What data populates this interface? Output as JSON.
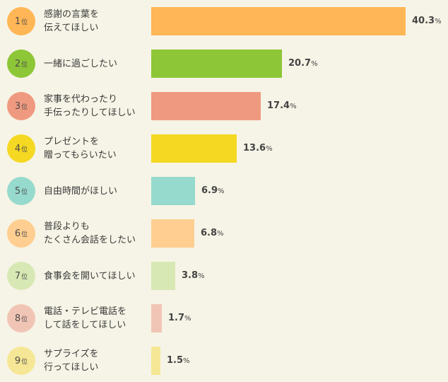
{
  "chart_data": {
    "type": "bar",
    "orientation": "horizontal",
    "unit": "%",
    "items": [
      {
        "rank": "1",
        "rank_unit": "位",
        "label_lines": [
          "感謝の言葉を",
          "伝えてほしい"
        ],
        "value": 40.3,
        "value_text": "40.3",
        "color": "#ffb656",
        "badge_color": "#ffb656"
      },
      {
        "rank": "2",
        "rank_unit": "位",
        "label_lines": [
          "一緒に過ごしたい"
        ],
        "value": 20.7,
        "value_text": "20.7",
        "color": "#8dc637",
        "badge_color": "#8dc637"
      },
      {
        "rank": "3",
        "rank_unit": "位",
        "label_lines": [
          "家事を代わったり",
          "手伝ったりしてほしい"
        ],
        "value": 17.4,
        "value_text": "17.4",
        "color": "#ef9a80",
        "badge_color": "#ef9a80"
      },
      {
        "rank": "4",
        "rank_unit": "位",
        "label_lines": [
          "プレゼントを",
          "贈ってもらいたい"
        ],
        "value": 13.6,
        "value_text": "13.6",
        "color": "#f5d822",
        "badge_color": "#f5d822"
      },
      {
        "rank": "5",
        "rank_unit": "位",
        "label_lines": [
          "自由時間がほしい"
        ],
        "value": 6.9,
        "value_text": "6.9",
        "color": "#96dacd",
        "badge_color": "#96dacd"
      },
      {
        "rank": "6",
        "rank_unit": "位",
        "label_lines": [
          "普段よりも",
          "たくさん会話をしたい"
        ],
        "value": 6.8,
        "value_text": "6.8",
        "color": "#ffce90",
        "badge_color": "#ffce90"
      },
      {
        "rank": "7",
        "rank_unit": "位",
        "label_lines": [
          "食事会を開いてほしい"
        ],
        "value": 3.8,
        "value_text": "3.8",
        "color": "#d8e8b4",
        "badge_color": "#d8e8b4"
      },
      {
        "rank": "8",
        "rank_unit": "位",
        "label_lines": [
          "電話・テレビ電話を",
          "して話をしてほしい"
        ],
        "value": 1.7,
        "value_text": "1.7",
        "color": "#f1c5b5",
        "badge_color": "#f1c5b5"
      },
      {
        "rank": "9",
        "rank_unit": "位",
        "label_lines": [
          "サプライズを",
          "行ってほしい"
        ],
        "value": 1.5,
        "value_text": "1.5",
        "color": "#f5e795",
        "badge_color": "#f5e795"
      }
    ],
    "xlim": [
      0,
      40.3
    ]
  }
}
